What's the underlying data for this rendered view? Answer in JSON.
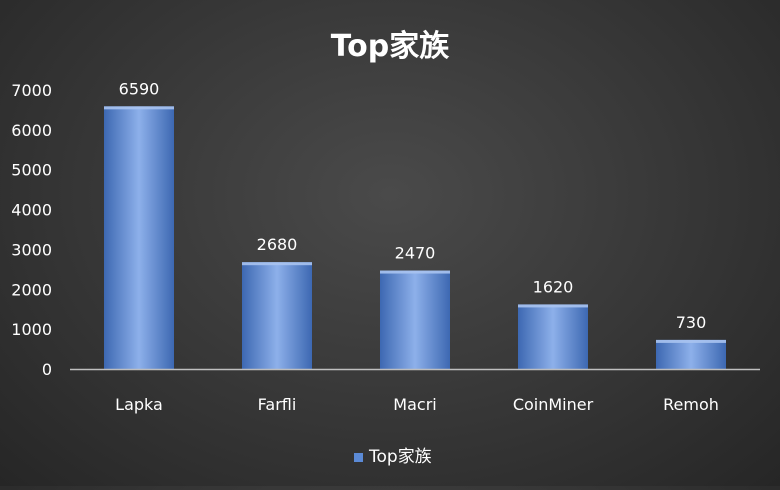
{
  "chart_data": {
    "type": "bar",
    "title": "Top家族",
    "categories": [
      "Lapka",
      "Farfli",
      "Macri",
      "CoinMiner",
      "Remoh"
    ],
    "series": [
      {
        "name": "Top家族",
        "values": [
          6590,
          2680,
          2470,
          1620,
          730
        ]
      }
    ],
    "data_labels": [
      "6590",
      "2680",
      "2470",
      "1620",
      "730"
    ],
    "ylim": [
      0,
      7000
    ],
    "yticks": [
      0,
      1000,
      2000,
      3000,
      4000,
      5000,
      6000,
      7000
    ],
    "grid": false,
    "legend": "bottom",
    "colors": {
      "bar": "#5b8ad6",
      "bar_dark": "#3d68b2",
      "bar_light": "#8db0ea",
      "text": "#ffffff",
      "axis": "#bfbfbf"
    }
  }
}
